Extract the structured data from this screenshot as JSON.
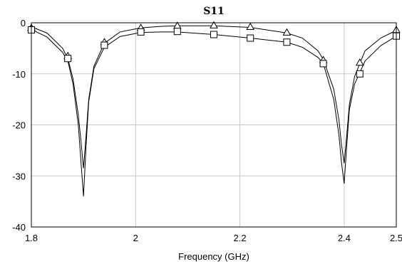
{
  "chart_data": {
    "type": "line",
    "title": "S11",
    "xlabel": "Frequency (GHz)",
    "ylabel": "",
    "xlim": [
      1.8,
      2.5
    ],
    "ylim": [
      -40,
      0
    ],
    "x_ticks": [
      "1.8",
      "2",
      "2.2",
      "2.4",
      "2.5"
    ],
    "x_tick_values": [
      1.8,
      2.0,
      2.2,
      2.4,
      2.5
    ],
    "y_ticks": [
      "0",
      "-10",
      "-20",
      "-30",
      "-40"
    ],
    "y_tick_values": [
      0,
      -10,
      -20,
      -30,
      -40
    ],
    "grid": true,
    "legend": "none",
    "series": [
      {
        "marker": "triangle",
        "color": "#000000",
        "x": [
          1.8,
          1.83,
          1.86,
          1.87,
          1.88,
          1.89,
          1.895,
          1.9,
          1.905,
          1.91,
          1.92,
          1.94,
          1.97,
          2.01,
          2.05,
          2.08,
          2.15,
          2.22,
          2.29,
          2.32,
          2.35,
          2.36,
          2.38,
          2.39,
          2.395,
          2.4,
          2.405,
          2.41,
          2.42,
          2.44,
          2.47,
          2.5
        ],
        "y": [
          -0.8,
          -2.0,
          -5.0,
          -7.0,
          -11.0,
          -18.0,
          -23.0,
          -28.5,
          -22.0,
          -15.0,
          -8.5,
          -4.0,
          -1.8,
          -1.0,
          -0.7,
          -0.6,
          -0.6,
          -0.9,
          -2.0,
          -3.0,
          -5.5,
          -7.2,
          -13.0,
          -19.0,
          -24.0,
          -27.5,
          -22.0,
          -16.0,
          -10.5,
          -5.5,
          -3.0,
          -1.5
        ],
        "markers_x": [
          1.8,
          1.87,
          1.94,
          2.01,
          2.08,
          2.15,
          2.22,
          2.29,
          2.36,
          2.43,
          2.5
        ],
        "markers_y": [
          -1.0,
          -6.5,
          -3.8,
          -1.0,
          -0.6,
          -0.5,
          -0.8,
          -1.9,
          -7.3,
          -7.8,
          -1.4
        ]
      },
      {
        "marker": "square",
        "color": "#000000",
        "x": [
          1.8,
          1.83,
          1.86,
          1.87,
          1.88,
          1.89,
          1.895,
          1.9,
          1.905,
          1.91,
          1.92,
          1.94,
          1.97,
          2.01,
          2.05,
          2.08,
          2.15,
          2.22,
          2.29,
          2.32,
          2.35,
          2.36,
          2.38,
          2.39,
          2.395,
          2.4,
          2.405,
          2.41,
          2.42,
          2.44,
          2.47,
          2.5
        ],
        "y": [
          -1.3,
          -2.8,
          -5.8,
          -7.5,
          -12.0,
          -20.0,
          -27.0,
          -34.0,
          -24.0,
          -15.5,
          -9.0,
          -4.8,
          -2.7,
          -1.9,
          -1.8,
          -1.8,
          -2.3,
          -3.0,
          -3.8,
          -4.8,
          -6.8,
          -8.0,
          -15.0,
          -22.0,
          -27.5,
          -31.5,
          -24.0,
          -17.0,
          -12.0,
          -7.5,
          -4.5,
          -2.6
        ],
        "markers_x": [
          1.8,
          1.87,
          1.94,
          2.01,
          2.08,
          2.15,
          2.22,
          2.29,
          2.36,
          2.43,
          2.5
        ],
        "markers_y": [
          -1.4,
          -7.0,
          -4.4,
          -1.8,
          -1.7,
          -2.3,
          -3.0,
          -3.8,
          -8.0,
          -10.0,
          -2.6
        ]
      }
    ]
  }
}
